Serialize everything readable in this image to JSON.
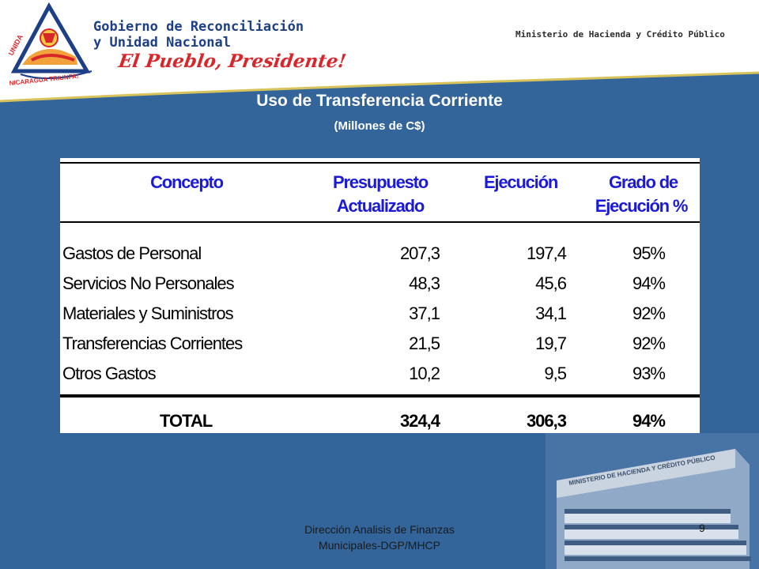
{
  "header": {
    "gov_line1": "Gobierno de Reconciliación",
    "gov_line2": "y Unidad Nacional",
    "slogan": "El Pueblo, Presidente!",
    "ministry": "Ministerio de Hacienda y Crédito Público",
    "logo_arc_top": "UNIDA",
    "logo_arc_bottom": "NICARAGUA TRIUNFA!"
  },
  "title": "Uso de Transferencia Corriente",
  "subtitle": "(Millones de C$)",
  "table": {
    "headers": [
      "Concepto",
      "Presupuesto",
      "Actualizado",
      "Ejecución",
      "Grado de",
      "Ejecución %"
    ],
    "rows": [
      [
        "Gastos de  Personal",
        "207,3",
        "197,4",
        "95%"
      ],
      [
        "Servicios No Personales",
        "48,3",
        "45,6",
        "94%"
      ],
      [
        "Materiales y Suministros",
        "37,1",
        "34,1",
        "92%"
      ],
      [
        "Transferencias Corrientes",
        "21,5",
        "19,7",
        "92%"
      ],
      [
        "Otros Gastos",
        "10,2",
        "9,5",
        "93%"
      ]
    ],
    "total": [
      "TOTAL",
      "324,4",
      "306,3",
      "94%"
    ]
  },
  "building_sign": "MINISTERIO DE HACIENDA Y CRÉDITO PÚBLICO",
  "footer": {
    "line1": "Dirección Analisis de Finanzas",
    "line2": "Municipales-DGP/MHCP",
    "page": "9"
  },
  "colors": {
    "background": "#33659b",
    "header_text": "#1a1ad8",
    "slogan": "#d9262b",
    "gov_text": "#1c3f87"
  }
}
